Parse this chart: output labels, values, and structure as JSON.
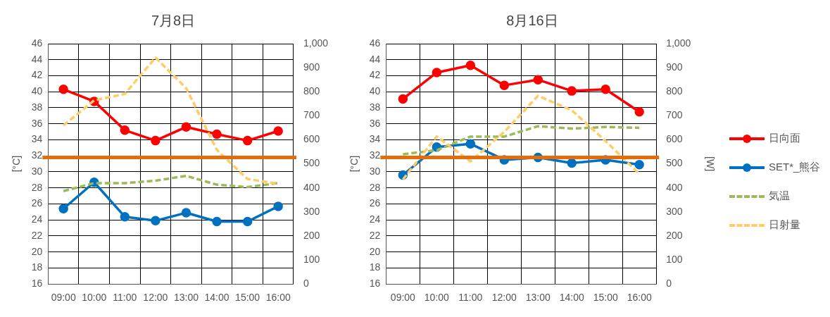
{
  "chart_data": [
    {
      "type": "line",
      "title": "7月8日",
      "ylabel": "[°C]",
      "categories": [
        "09:00",
        "10:00",
        "11:00",
        "12:00",
        "13:00",
        "14:00",
        "15:00",
        "16:00"
      ],
      "series": [
        {
          "color": "#ff0000",
          "marker": "circle",
          "line_style": "solid",
          "values": [
            40.3,
            38.8,
            35.2,
            33.9,
            35.6,
            34.7,
            33.9,
            35.1
          ]
        },
        {
          "color": "#0070c0",
          "marker": "circle",
          "line_style": "solid",
          "values": [
            25.4,
            28.7,
            24.4,
            23.9,
            24.9,
            23.8,
            23.8,
            25.7
          ]
        },
        {
          "color": "#9bbb59",
          "marker": "none",
          "line_style": "dashed",
          "values": [
            27.6,
            28.6,
            28.6,
            28.9,
            29.5,
            28.4,
            28.1,
            28.6
          ]
        },
        {
          "color": "#ffcc66",
          "marker": "none",
          "line_style": "dashed",
          "axis": "y2",
          "values": [
            660,
            764,
            791,
            942,
            815,
            558,
            437,
            417
          ]
        }
      ],
      "ylim": [
        16,
        46
      ],
      "yticks": [
        16,
        18,
        20,
        22,
        24,
        26,
        28,
        30,
        32,
        34,
        36,
        38,
        40,
        42,
        44,
        46
      ],
      "y2lim": [
        0,
        1000
      ],
      "y2ticks": [
        0,
        100,
        200,
        300,
        400,
        500,
        600,
        700,
        800,
        900,
        {
          "value": 1000,
          "label": "1,000"
        }
      ],
      "ref_lines": [
        {
          "axis": "y",
          "value": 31.8,
          "color": "#e46c0a"
        }
      ],
      "grid": true,
      "legend": false
    },
    {
      "type": "line",
      "title": "8月16日",
      "ylabel": "[°C]",
      "y2label": "[W]",
      "categories": [
        "09:00",
        "10:00",
        "11:00",
        "12:00",
        "13:00",
        "14:00",
        "15:00",
        "16:00"
      ],
      "series": [
        {
          "name": "日向面",
          "color": "#ff0000",
          "marker": "circle",
          "line_style": "solid",
          "values": [
            39.1,
            42.4,
            43.3,
            40.8,
            41.5,
            40.1,
            40.3,
            37.5
          ]
        },
        {
          "name": "SET*_熊谷",
          "color": "#0070c0",
          "marker": "circle",
          "line_style": "solid",
          "values": [
            29.6,
            33.1,
            33.5,
            31.5,
            31.8,
            31.1,
            31.5,
            30.9
          ]
        },
        {
          "name": "気温",
          "color": "#9bbb59",
          "marker": "none",
          "line_style": "dashed",
          "values": [
            32.2,
            32.7,
            34.4,
            34.4,
            35.7,
            35.4,
            35.6,
            35.5
          ]
        },
        {
          "name": "日射量",
          "color": "#ffcc66",
          "marker": "none",
          "line_style": "dashed",
          "axis": "y2",
          "values": [
            435,
            614,
            510,
            633,
            783,
            723,
            595,
            458
          ]
        }
      ],
      "ylim": [
        16,
        46
      ],
      "yticks": [
        16,
        18,
        20,
        22,
        24,
        26,
        28,
        30,
        32,
        34,
        36,
        38,
        40,
        42,
        44,
        46
      ],
      "y2lim": [
        0,
        1000
      ],
      "y2ticks": [
        0,
        100,
        200,
        300,
        400,
        500,
        600,
        700,
        800,
        900,
        {
          "value": 1000,
          "label": "1,000"
        }
      ],
      "ref_lines": [
        {
          "axis": "y",
          "value": 31.8,
          "color": "#e46c0a"
        }
      ],
      "grid": true,
      "legend": "right"
    }
  ]
}
